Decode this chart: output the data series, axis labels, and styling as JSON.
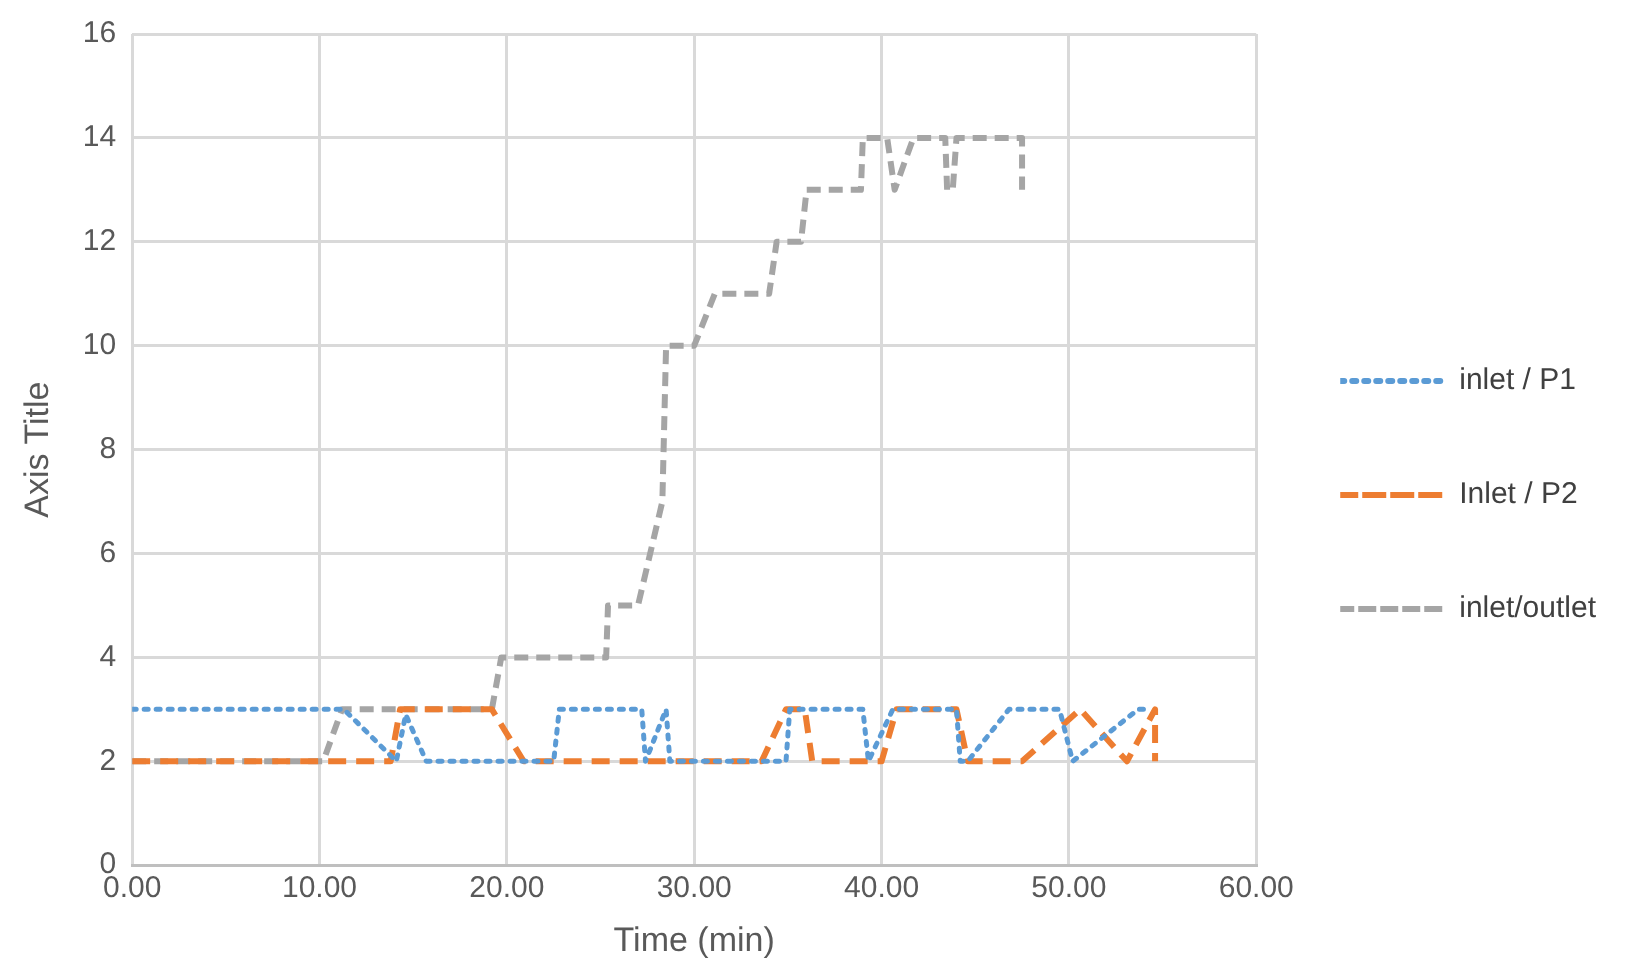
{
  "chart_data": {
    "type": "line",
    "xlabel": "Time (min)",
    "ylabel": "Axis Title",
    "marker": "none",
    "grid": true,
    "legend": "right",
    "xlim": [
      0,
      60
    ],
    "xticks": [
      {
        "value": 0,
        "label": "0.00"
      },
      {
        "value": 10,
        "label": "10.00"
      },
      {
        "value": 20,
        "label": "20.00"
      },
      {
        "value": 30,
        "label": "30.00"
      },
      {
        "value": 40,
        "label": "40.00"
      },
      {
        "value": 50,
        "label": "50.00"
      },
      {
        "value": 60,
        "label": "60.00"
      }
    ],
    "ylim": [
      0,
      16
    ],
    "yticks": [
      0,
      2,
      4,
      6,
      8,
      10,
      12,
      14,
      16
    ],
    "series": [
      {
        "name": "inlet / P1",
        "color": "#5b9bd5",
        "line_style": "dotted",
        "x": [
          0,
          11.3,
          14.1,
          14.6,
          15.7,
          22.5,
          22.8,
          27.2,
          27.4,
          28.5,
          28.7,
          34.9,
          35.1,
          39,
          39.3,
          40.6,
          44,
          44.2,
          44.6,
          46.8,
          49.5,
          50.2,
          53.7,
          54.3
        ],
        "values": [
          3,
          3,
          2,
          2.9,
          2,
          2,
          3,
          3,
          2,
          3,
          2,
          2,
          3,
          3,
          2,
          3,
          3,
          2,
          2,
          3,
          3,
          2,
          3,
          3
        ]
      },
      {
        "name": "Inlet / P2",
        "color": "#ed7d31",
        "line_style": "dashed",
        "x": [
          0,
          13.8,
          14.3,
          19.2,
          20.9,
          33.6,
          34.9,
          35.9,
          36.3,
          40,
          40.8,
          44,
          44.6,
          47.5,
          50.6,
          53.1,
          54.6,
          54.6
        ],
        "values": [
          2,
          2,
          3,
          3,
          2,
          2,
          3,
          3,
          2,
          2,
          3,
          3,
          2,
          2,
          3,
          2,
          3,
          2
        ]
      },
      {
        "name": "inlet/outlet",
        "color": "#a5a5a5",
        "line_style": "dashed",
        "x": [
          0,
          10.2,
          11.2,
          19.2,
          19.7,
          25.3,
          25.4,
          27,
          28.3,
          28.5,
          30,
          31.1,
          34,
          34.4,
          35.7,
          36,
          38.9,
          39,
          40.3,
          40.7,
          41.7,
          43.4,
          43.5,
          43.8,
          44,
          47.5,
          47.5
        ],
        "values": [
          2,
          2,
          3,
          3,
          4,
          4,
          5,
          5,
          7,
          10,
          10,
          11,
          11,
          12,
          12,
          13,
          13,
          14,
          14,
          13,
          14,
          14,
          13,
          13,
          14,
          14,
          13
        ]
      }
    ]
  }
}
